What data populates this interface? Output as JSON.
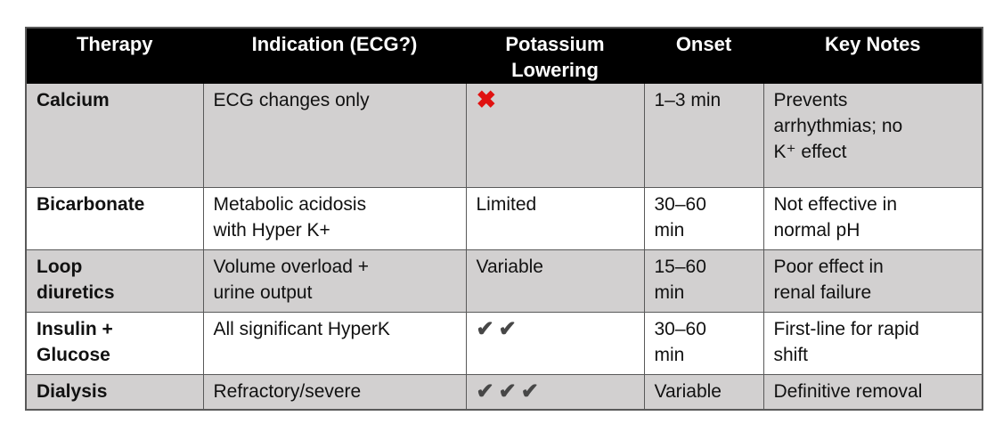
{
  "table": {
    "columns": [
      {
        "id": "therapy",
        "label": "Therapy"
      },
      {
        "id": "indication",
        "label": "Indication (ECG?)"
      },
      {
        "id": "potassium",
        "label": "Potassium Lowering"
      },
      {
        "id": "onset",
        "label": "Onset"
      },
      {
        "id": "notes",
        "label": "Key Notes"
      }
    ],
    "rows": [
      {
        "therapy": "Calcium",
        "indication": "ECG changes only",
        "potassium": {
          "kind": "cross"
        },
        "onset": "1–3 min",
        "notes": "Prevents\narrhythmias; no\nK⁺ effect",
        "shaded": true
      },
      {
        "therapy": "Bicarbonate",
        "indication": "Metabolic acidosis\nwith Hyper K+",
        "potassium": {
          "kind": "text",
          "value": "Limited"
        },
        "onset": "30–60\nmin",
        "notes": "Not effective in\nnormal pH",
        "shaded": false
      },
      {
        "therapy": "Loop\ndiuretics",
        "indication": "Volume overload +\nurine output",
        "potassium": {
          "kind": "text",
          "value": "Variable"
        },
        "onset": "15–60\nmin",
        "notes": "Poor effect in\nrenal failure",
        "shaded": true
      },
      {
        "therapy": "Insulin +\nGlucose",
        "indication": "All significant HyperK",
        "potassium": {
          "kind": "checks",
          "count": 2
        },
        "onset": "30–60\nmin",
        "notes": "First-line for rapid\nshift",
        "shaded": false
      },
      {
        "therapy": "Dialysis",
        "indication": "Refractory/severe",
        "potassium": {
          "kind": "checks",
          "count": 3
        },
        "onset": "Variable",
        "notes": "Definitive removal",
        "shaded": true
      }
    ]
  },
  "icons": {
    "cross": "✖",
    "check": "✔"
  },
  "colors": {
    "header_bg": "#000000",
    "header_text": "#ffffff",
    "shaded_row_bg": "#d2d0d0",
    "plain_row_bg": "#ffffff",
    "cross_color": "#e01110",
    "check_color": "#474747",
    "border_color": "#595959",
    "text_color": "#111111"
  }
}
